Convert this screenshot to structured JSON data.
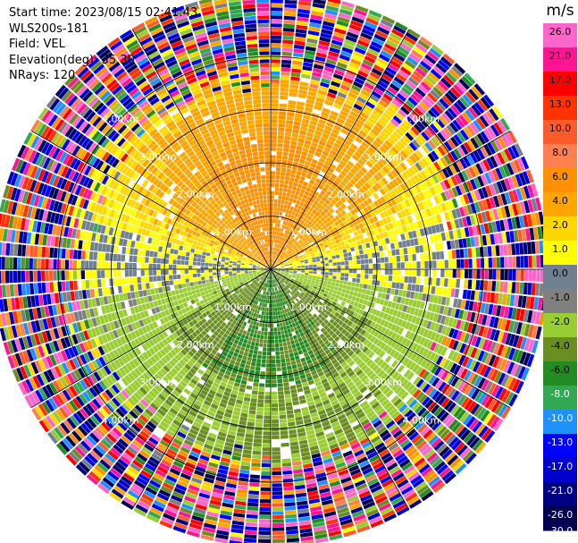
{
  "header": {
    "start_time": "Start time: 2023/08/15 02:41:43",
    "instrument": "WLS200s-181",
    "field": "Field: VEL",
    "elevation": "Elevation(deg): 35.30",
    "nrays": "NRays: 120"
  },
  "chart_data": {
    "type": "heatmap",
    "projection": "polar-ppi",
    "field": "VEL",
    "units": "m/s",
    "n_rays": 120,
    "range_rings_km": [
      1.0,
      2.0,
      3.0,
      4.0
    ],
    "ring_labels": [
      "1.00km",
      "2.00km",
      "3.00km",
      "4.00km"
    ],
    "max_range_km": 5.2,
    "spoke_angles_deg": [
      0,
      30,
      60,
      90,
      120,
      150,
      180,
      210,
      240,
      270,
      300,
      330
    ],
    "colorbar": {
      "unit_label": "m/s",
      "boundaries": [
        26.0,
        21.0,
        17.0,
        13.0,
        10.0,
        8.0,
        6.0,
        4.0,
        2.0,
        1.0,
        0.0,
        -1.0,
        -2.0,
        -4.0,
        -6.0,
        -8.0,
        -10.0,
        -13.0,
        -17.0,
        -21.0,
        -26.0,
        -30.0
      ],
      "tick_labels": [
        "26.0",
        "21.0",
        "17.0",
        "13.0",
        "10.0",
        "8.0",
        "6.0",
        "4.0",
        "2.0",
        "1.0",
        "0.0",
        "-1.0",
        "-2.0",
        "-4.0",
        "-6.0",
        "-8.0",
        "-10.0",
        "-13.0",
        "-17.0",
        "-21.0",
        "-26.0",
        "-30.0"
      ],
      "colors": [
        "#ff66cc",
        "#ff1493",
        "#ff0000",
        "#ff3300",
        "#ff5a2a",
        "#ff7f50",
        "#ff9000",
        "#ffa500",
        "#ffd700",
        "#ffff00",
        "#708090",
        "#808080",
        "#9acd32",
        "#6b8e23",
        "#228b22",
        "#32a852",
        "#1e90ff",
        "#0000ff",
        "#0000cd",
        "#000080",
        "#000050"
      ]
    },
    "velocity_pattern": {
      "north_sector_ms": 5.0,
      "north_outer_ms": 1.5,
      "east_west_ms": 0.0,
      "south_sector_ms": -5.0,
      "south_outer_ms": -3.0,
      "noise_begins_km": 3.6
    }
  }
}
